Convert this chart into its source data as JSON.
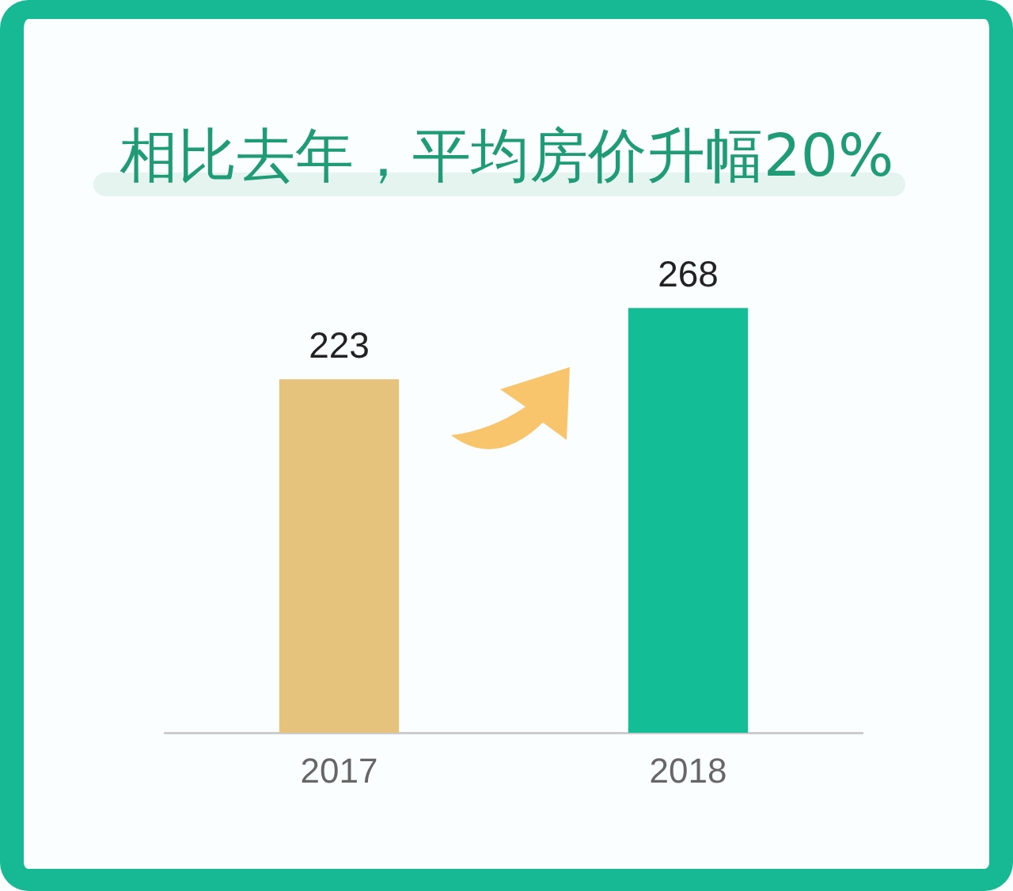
{
  "chart_data": {
    "type": "bar",
    "title": "相比去年，平均房价升幅20%",
    "categories": [
      "2017",
      "2018"
    ],
    "values": [
      223,
      268
    ],
    "colors": [
      "#e6c37d",
      "#13be97"
    ],
    "data_labels": true
  }
}
